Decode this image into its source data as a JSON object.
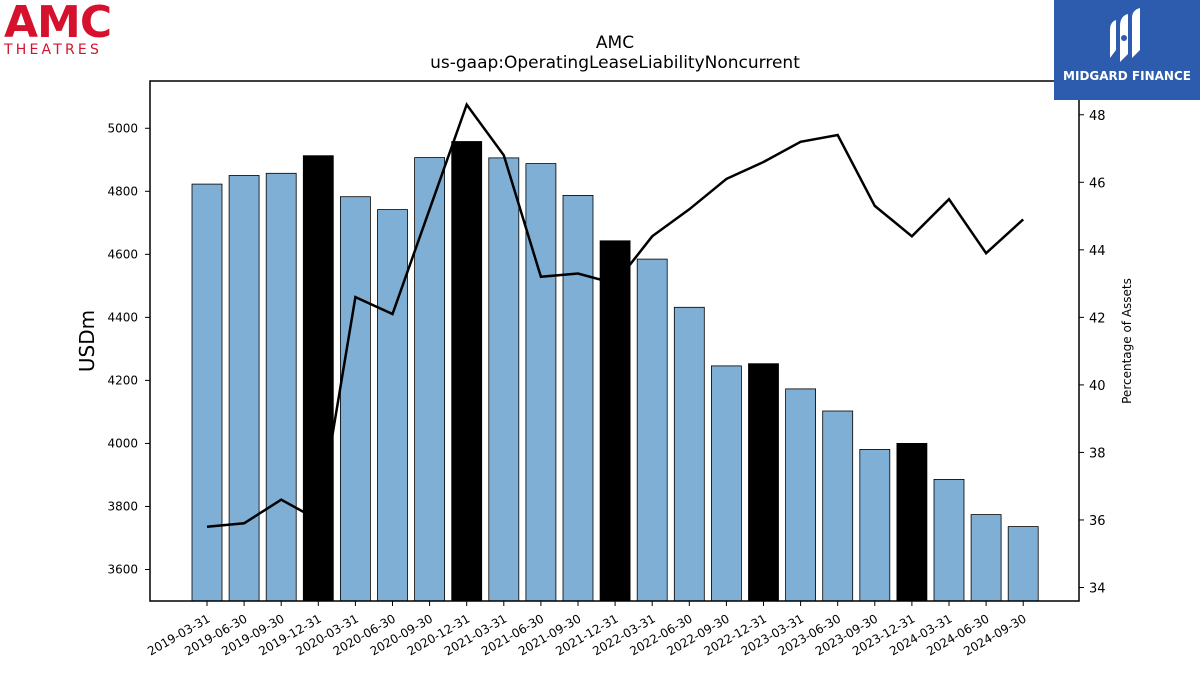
{
  "logos": {
    "left_logo_text": "AMC",
    "left_logo_sub": "THEATRES",
    "right_logo_text": "MIDGARD FINANCE"
  },
  "chart_data": {
    "type": "bar",
    "title": "AMC",
    "subtitle": "us-gaap:OperatingLeaseLiabilityNoncurrent",
    "ylabel": "USDm",
    "y2label": "Percentage of Assets",
    "ylim": [
      3500,
      5150
    ],
    "y2lim": [
      33.6,
      49
    ],
    "yticks": [
      3600,
      3800,
      4000,
      4200,
      4400,
      4600,
      4800,
      5000
    ],
    "y2ticks": [
      34,
      36,
      38,
      40,
      42,
      44,
      46,
      48
    ],
    "categories": [
      "2019-03-31",
      "2019-06-30",
      "2019-09-30",
      "2019-12-31",
      "2020-03-31",
      "2020-06-30",
      "2020-09-30",
      "2020-12-31",
      "2021-03-31",
      "2021-06-30",
      "2021-09-30",
      "2021-12-31",
      "2022-03-31",
      "2022-06-30",
      "2022-09-30",
      "2022-12-31",
      "2023-03-31",
      "2023-06-30",
      "2023-09-30",
      "2023-12-31",
      "2024-03-31",
      "2024-06-30",
      "2024-09-30"
    ],
    "series": [
      {
        "type": "bar",
        "values": [
          4823,
          4850,
          4857,
          4913,
          4783,
          4742,
          4907,
          4958,
          4906,
          4888,
          4787,
          4643,
          4585,
          4432,
          4246,
          4253,
          4173,
          4103,
          3981,
          4000,
          3886,
          3774,
          3736
        ],
        "highlight": [
          false,
          false,
          false,
          true,
          false,
          false,
          false,
          true,
          false,
          false,
          false,
          true,
          false,
          false,
          false,
          true,
          false,
          false,
          false,
          true,
          false,
          false,
          false
        ]
      },
      {
        "type": "line",
        "axis": "secondary",
        "values": [
          35.8,
          35.9,
          36.6,
          36.0,
          42.6,
          42.1,
          45.2,
          48.3,
          46.8,
          43.2,
          43.3,
          43.0,
          44.4,
          45.2,
          46.1,
          46.6,
          47.2,
          47.4,
          45.3,
          44.4,
          45.5,
          43.9,
          44.9
        ]
      }
    ],
    "colors": {
      "bar": "#7fafd4",
      "bar_highlight": "#000000",
      "line": "#000000"
    }
  }
}
